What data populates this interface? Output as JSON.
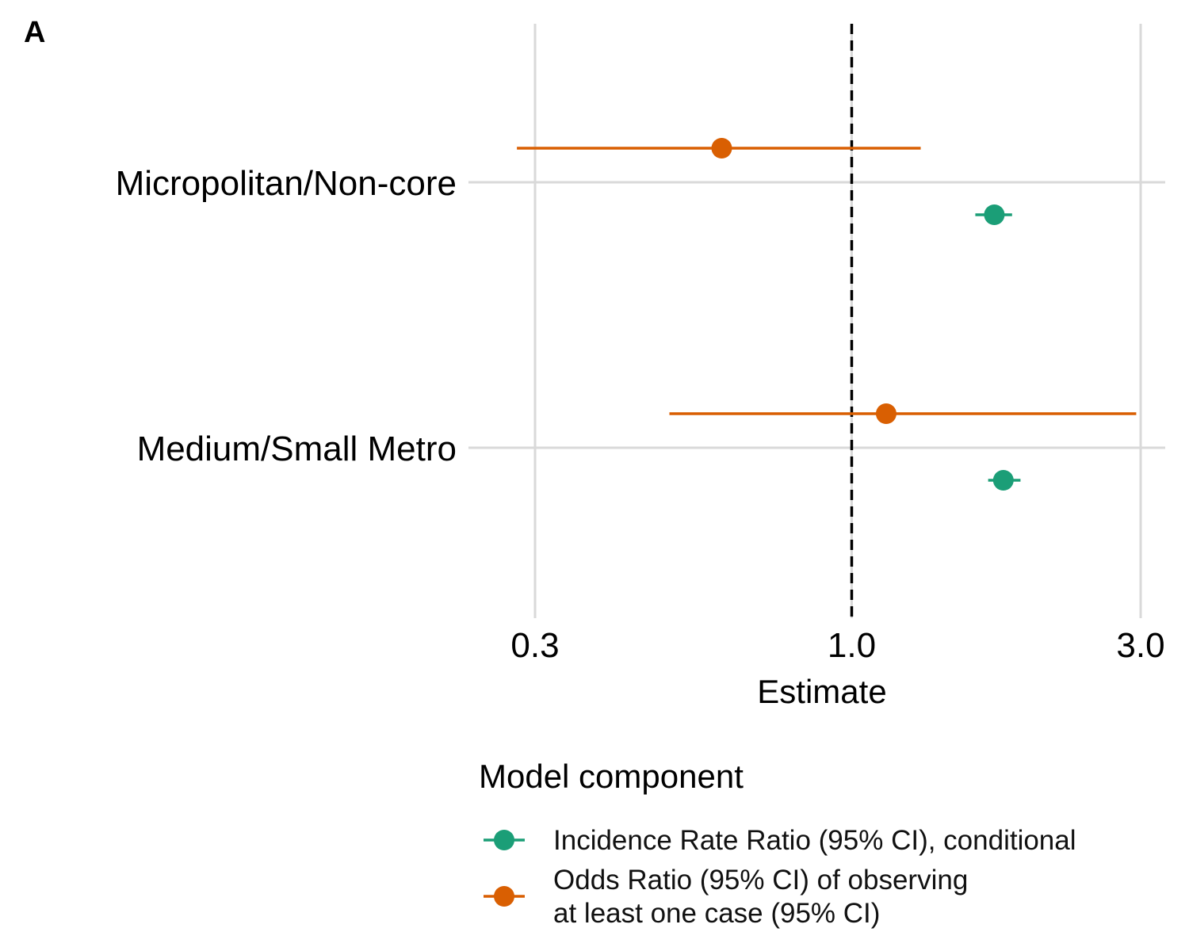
{
  "panel_tag": "A",
  "chart_data": {
    "type": "scatter",
    "subtype": "forest-plot",
    "title": "",
    "xlabel": "Estimate",
    "ylabel": "",
    "x_scale": "log",
    "xlim": [
      0.27,
      3.1
    ],
    "x_ticks": [
      0.3,
      1.0,
      3.0
    ],
    "x_tick_labels": [
      "0.3",
      "1.0",
      "3.0"
    ],
    "reference_line": {
      "x": 1.0,
      "style": "dashed",
      "color": "#000000"
    },
    "grid": true,
    "categories": [
      "Micropolitan/Non-core",
      "Medium/Small Metro"
    ],
    "series": [
      {
        "name": "Incidence Rate Ratio (95% CI), conditional",
        "color": "#1b9e77",
        "estimates": [
          1.72,
          1.78
        ],
        "lower": [
          1.6,
          1.68
        ],
        "upper": [
          1.84,
          1.9
        ]
      },
      {
        "name": "Odds Ratio (95% CI) of observing\nat least one case (95% CI)",
        "color": "#d95f02",
        "estimates": [
          0.61,
          1.14
        ],
        "lower": [
          0.28,
          0.5
        ],
        "upper": [
          1.3,
          2.95
        ]
      }
    ],
    "legend": {
      "title": "Model component",
      "position": "bottom",
      "entries": [
        {
          "lines": [
            "Incidence Rate Ratio (95% CI), conditional"
          ]
        },
        {
          "lines": [
            "Odds Ratio (95% CI) of observing",
            "at least one case (95% CI)"
          ]
        }
      ]
    }
  }
}
